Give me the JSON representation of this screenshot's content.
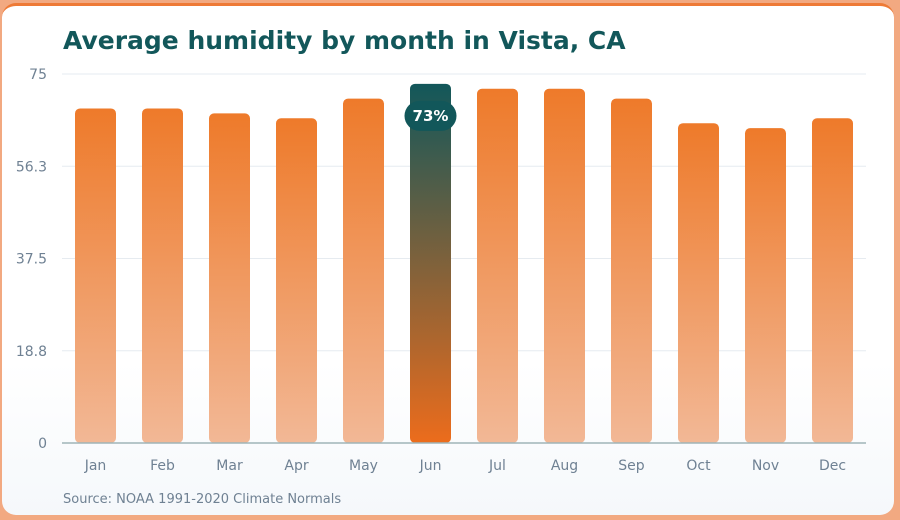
{
  "chart_data": {
    "type": "bar",
    "title": "Average humidity by month in Vista, CA",
    "source": "Source: NOAA 1991-2020 Climate Normals",
    "categories": [
      "Jan",
      "Feb",
      "Mar",
      "Apr",
      "May",
      "Jun",
      "Jul",
      "Aug",
      "Sep",
      "Oct",
      "Nov",
      "Dec"
    ],
    "values": [
      68,
      68,
      67,
      66,
      70,
      73,
      72,
      72,
      70,
      65,
      64,
      66
    ],
    "ylim": [
      0,
      75
    ],
    "yticks": [
      "0",
      "18.8",
      "37.5",
      "56.3",
      "75"
    ],
    "highlight": {
      "category": "Jun",
      "label": "73%"
    },
    "colors": {
      "bar_top": "#ee7a2a",
      "bar_bottom": "#f2b896",
      "highlight_top": "#12575a",
      "highlight_bottom": "#ec6c1c",
      "badge": "#12575a"
    },
    "grid": true
  }
}
